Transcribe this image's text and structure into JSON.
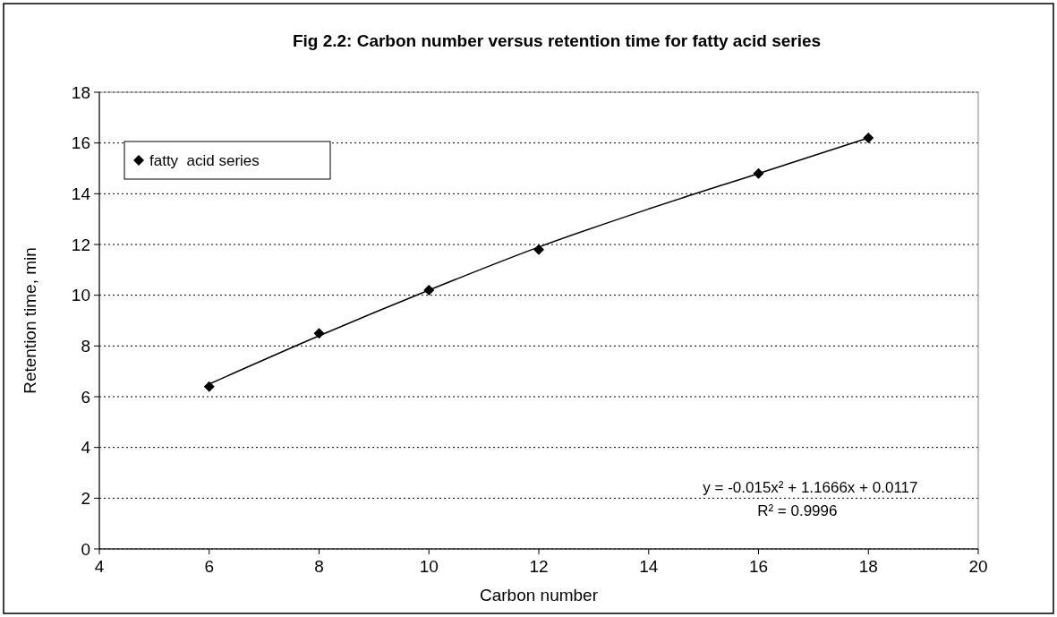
{
  "chart_data": {
    "type": "scatter",
    "title": "Fig 2.2: Carbon number versus retention time for fatty acid series",
    "xlabel": "Carbon number",
    "ylabel": "Retention time, min",
    "xlim": [
      4,
      20
    ],
    "xticks": [
      4,
      6,
      8,
      10,
      12,
      14,
      16,
      18,
      20
    ],
    "ylim": [
      0,
      18
    ],
    "yticks": [
      0,
      2,
      4,
      6,
      8,
      10,
      12,
      14,
      16,
      18
    ],
    "grid": "y",
    "legend": "top left",
    "series": [
      {
        "name": "fatty  acid series",
        "marker": "diamond",
        "color": "#000000",
        "x": [
          6,
          8,
          10,
          12,
          16,
          18
        ],
        "values": [
          6.4,
          8.5,
          10.2,
          11.8,
          14.8,
          16.2
        ]
      },
      {
        "type": "line",
        "marker": "none",
        "color": "#000000",
        "x": [
          6,
          8,
          10,
          12,
          14,
          16,
          18
        ],
        "values": [
          6.5,
          8.4,
          10.2,
          11.9,
          13.4,
          14.8,
          16.2
        ]
      }
    ],
    "annotations": [
      "y = -0.015x² + 1.1666x + 0.0117",
      "R² = 0.9996"
    ]
  }
}
